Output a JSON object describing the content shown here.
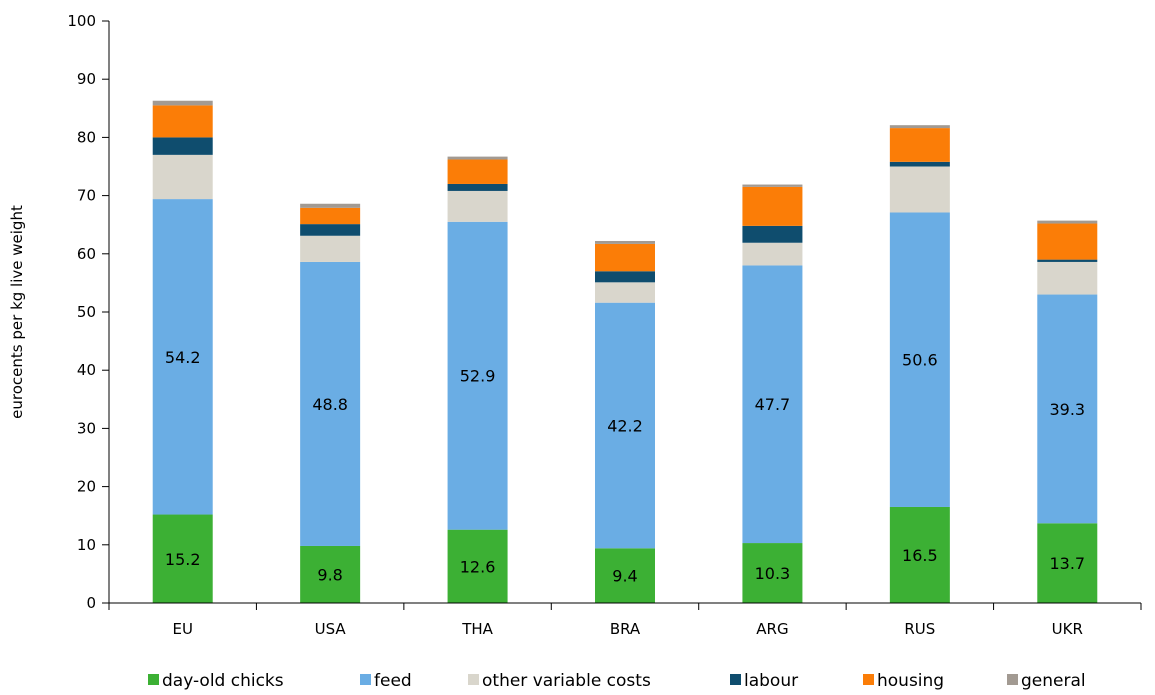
{
  "chart_data": {
    "type": "bar",
    "stacked": true,
    "title": "",
    "xlabel": "",
    "ylabel": "eurocents per kg live weight",
    "ylim": [
      0,
      100
    ],
    "yticks": [
      0,
      10,
      20,
      30,
      40,
      50,
      60,
      70,
      80,
      90,
      100
    ],
    "grid": false,
    "legend_position": "bottom",
    "categories": [
      "EU",
      "USA",
      "THA",
      "BRA",
      "ARG",
      "RUS",
      "UKR"
    ],
    "series": [
      {
        "name": "day-old chicks",
        "color": "#3cb034",
        "values": [
          15.2,
          9.8,
          12.6,
          9.4,
          10.3,
          16.5,
          13.7
        ],
        "labels": [
          "15.2",
          "9.8",
          "12.6",
          "9.4",
          "10.3",
          "16.5",
          "13.7"
        ]
      },
      {
        "name": "feed",
        "color": "#6aade4",
        "values": [
          54.2,
          48.8,
          52.9,
          42.2,
          47.7,
          50.6,
          39.3
        ],
        "labels": [
          "54.2",
          "48.8",
          "52.9",
          "42.2",
          "47.7",
          "50.6",
          "39.3"
        ]
      },
      {
        "name": "other variable costs",
        "color": "#d9d6cc",
        "values": [
          7.6,
          4.5,
          5.3,
          3.5,
          3.9,
          7.9,
          5.6
        ]
      },
      {
        "name": "labour",
        "color": "#0f4d6e",
        "values": [
          3.0,
          2.0,
          1.2,
          1.9,
          2.9,
          0.8,
          0.4
        ]
      },
      {
        "name": "housing",
        "color": "#fb7d07",
        "values": [
          5.5,
          2.8,
          4.2,
          4.7,
          6.7,
          5.8,
          6.2
        ]
      },
      {
        "name": "general",
        "color": "#a29a92",
        "values": [
          0.8,
          0.7,
          0.5,
          0.5,
          0.4,
          0.5,
          0.5
        ]
      }
    ]
  }
}
